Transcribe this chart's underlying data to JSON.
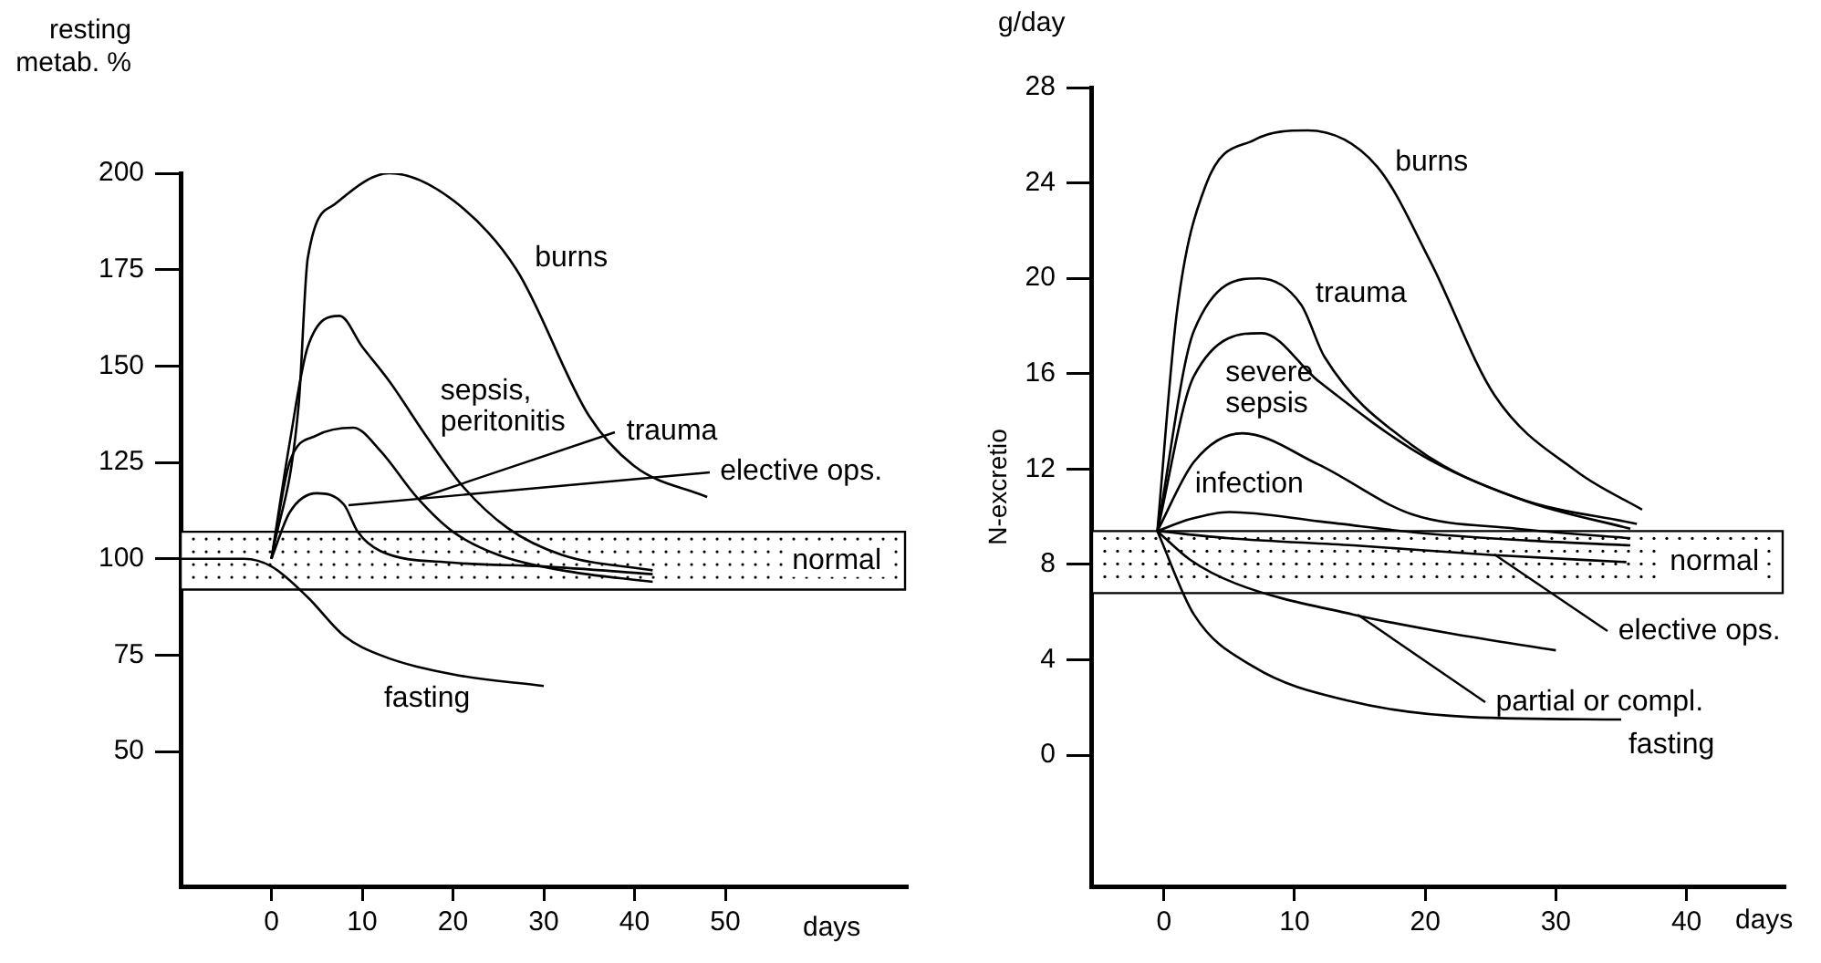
{
  "chart_data": [
    {
      "type": "line",
      "xlabel": "days",
      "ylabel": "resting metab. %",
      "xlim": [
        -10,
        70
      ],
      "xticks": [
        0,
        10,
        20,
        30,
        40,
        50
      ],
      "ylim": [
        15,
        200
      ],
      "yticks": [
        50,
        75,
        100,
        125,
        150,
        175,
        200
      ],
      "grid": false,
      "legend": false,
      "bands": [
        {
          "axis": "y",
          "from": 92,
          "to": 107,
          "label": "normal",
          "color": "#ffffff"
        }
      ],
      "series": [
        {
          "name": "burns",
          "color": "#000000",
          "x": [
            0,
            3,
            4,
            7,
            13,
            20,
            27,
            35,
            40,
            48
          ],
          "values": [
            100,
            140,
            178,
            192,
            200,
            193,
            175,
            137,
            124,
            116
          ]
        },
        {
          "name": "sepsis, peritonitis",
          "color": "#000000",
          "x": [
            0,
            2,
            4,
            7.5,
            10,
            13,
            17,
            21,
            26,
            32,
            42
          ],
          "values": [
            100,
            130,
            155,
            163,
            155,
            146,
            132,
            119,
            108,
            101,
            97
          ]
        },
        {
          "name": "trauma",
          "color": "#000000",
          "x": [
            0,
            2,
            5,
            9,
            12,
            16,
            20,
            25,
            32,
            42
          ],
          "values": [
            100,
            125,
            132,
            134,
            128,
            116,
            107,
            101,
            97,
            94
          ]
        },
        {
          "name": "elective ops.",
          "color": "#000000",
          "x": [
            0,
            2,
            5,
            8,
            9.5,
            12,
            20,
            30,
            42
          ],
          "values": [
            100,
            112,
            117,
            114,
            107,
            102,
            99,
            98,
            96
          ]
        },
        {
          "name": "fasting",
          "color": "#000000",
          "x": [
            -10,
            -3,
            0,
            4,
            8,
            12,
            20,
            30
          ],
          "values": [
            100,
            100,
            98,
            90,
            80,
            75,
            70,
            67
          ]
        }
      ]
    },
    {
      "type": "line",
      "xlabel": "days",
      "ylabel": "N-excretio",
      "annotations": [
        "g/day"
      ],
      "xlim": [
        -5.5,
        47.5
      ],
      "xticks": [
        0,
        10,
        20,
        30,
        40
      ],
      "ylim": [
        -5.5,
        28
      ],
      "yticks": [
        0,
        4,
        8,
        12,
        16,
        20,
        24,
        28
      ],
      "grid": false,
      "legend": false,
      "bands": [
        {
          "axis": "y",
          "from": 6.8,
          "to": 9.4,
          "label": "normal",
          "color": "#ffffff"
        }
      ],
      "series": [
        {
          "name": "burns",
          "color": "#000000",
          "x": [
            -0.5,
            1,
            3.2,
            6.9,
            11,
            16.3,
            20.4,
            25.3,
            31.6,
            36.6
          ],
          "values": [
            9.4,
            18.6,
            23.9,
            25.8,
            26.2,
            24.7,
            20.7,
            15.1,
            11.9,
            10.3
          ]
        },
        {
          "name": "trauma",
          "color": "#000000",
          "x": [
            -0.5,
            2.3,
            7.3,
            10.5,
            12.3,
            19,
            27,
            36.2
          ],
          "values": [
            9.4,
            17.8,
            20,
            18.9,
            16.7,
            13,
            10.8,
            9.7
          ]
        },
        {
          "name": "severe sepsis",
          "color": "#000000",
          "x": [
            -0.5,
            2.3,
            7.5,
            11.8,
            20,
            28,
            35.7
          ],
          "values": [
            9.4,
            15.9,
            17.7,
            15.7,
            12.5,
            10.6,
            9.5
          ]
        },
        {
          "name": "infection",
          "color": "#000000",
          "x": [
            -0.5,
            2.3,
            6,
            11.8,
            19,
            27,
            35.7
          ],
          "values": [
            9.4,
            12.3,
            13.5,
            12.2,
            10.1,
            9.5,
            9.1
          ]
        },
        {
          "color": "#000000",
          "x": [
            -0.5,
            2,
            5,
            12,
            20,
            28,
            35.7
          ],
          "values": [
            9.4,
            9.9,
            10.2,
            9.8,
            9.3,
            9,
            8.8
          ]
        },
        {
          "name": "elective ops.",
          "color": "#000000",
          "x": [
            -0.5,
            5,
            14.5,
            25,
            35.4
          ],
          "values": [
            9.4,
            9.1,
            8.8,
            8.4,
            8.1
          ]
        },
        {
          "name": "partial or compl.",
          "color": "#000000",
          "x": [
            -0.5,
            2,
            5.5,
            14.5,
            22,
            30
          ],
          "values": [
            9.4,
            8.2,
            7.2,
            5.9,
            5.1,
            4.4
          ]
        },
        {
          "name": "fasting",
          "color": "#000000",
          "x": [
            -0.5,
            2.3,
            6.9,
            14,
            23.5,
            35
          ],
          "values": [
            9.4,
            5.9,
            3.7,
            2.3,
            1.6,
            1.5
          ]
        }
      ]
    }
  ]
}
